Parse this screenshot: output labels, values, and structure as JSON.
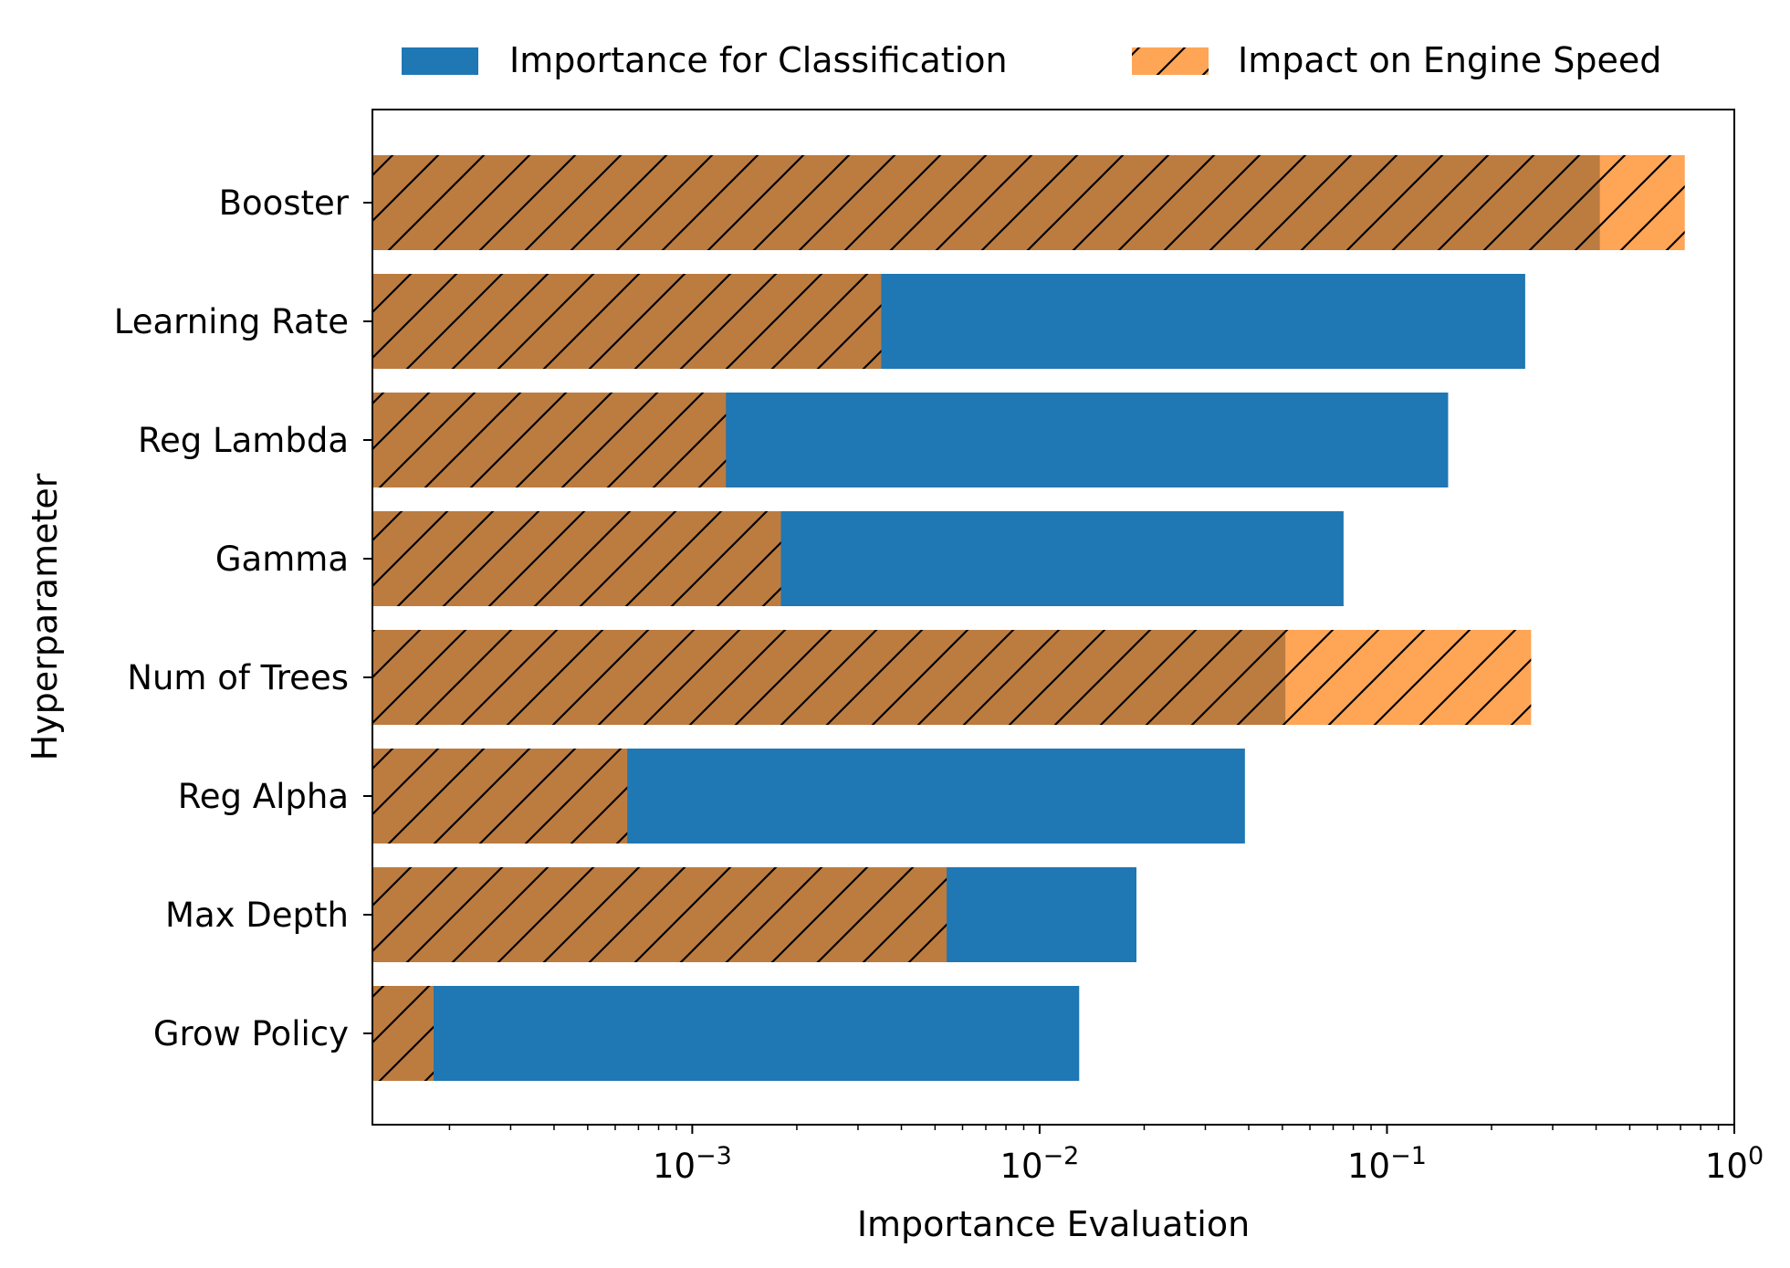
{
  "chart_data": {
    "type": "bar",
    "orientation": "horizontal",
    "xscale": "log",
    "xlim": [
      0.00012,
      1
    ],
    "xlabel": "Importance Evaluation",
    "ylabel": "Hyperparameter",
    "x_tick_labels": [
      {
        "value": 0.001,
        "base": "10",
        "exp": "−3"
      },
      {
        "value": 0.01,
        "base": "10",
        "exp": "−2"
      },
      {
        "value": 0.1,
        "base": "10",
        "exp": "−1"
      },
      {
        "value": 1,
        "base": "10",
        "exp": "0"
      }
    ],
    "categories": [
      "Booster",
      "Learning Rate",
      "Reg Lambda",
      "Gamma",
      "Num of Trees",
      "Reg Alpha",
      "Max Depth",
      "Grow Policy"
    ],
    "series": [
      {
        "name": "Importance for Classification",
        "color": "#1f77b4",
        "values": [
          0.41,
          0.25,
          0.15,
          0.075,
          0.051,
          0.039,
          0.019,
          0.013
        ]
      },
      {
        "name": "Impact on Engine Speed",
        "color": "#ff7f0e",
        "hatch": "/",
        "values": [
          0.72,
          0.0035,
          0.00125,
          0.0018,
          0.26,
          0.00065,
          0.0054,
          0.00018
        ]
      }
    ],
    "legend_position": "top-center",
    "grid": false
  }
}
